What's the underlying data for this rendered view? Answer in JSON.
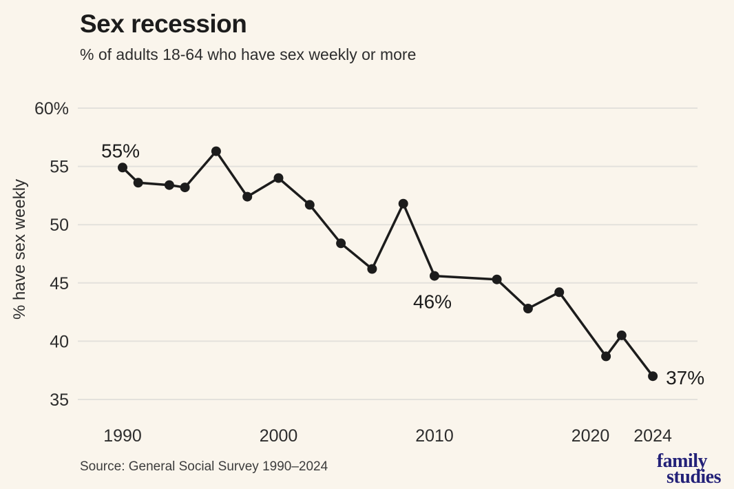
{
  "header": {
    "title": "Sex recession",
    "subtitle": "% of adults 18-64 who have sex weekly or more"
  },
  "footer": {
    "source": "Source: General Social Survey 1990–2024",
    "logo_line1": "family",
    "logo_line2": "studies"
  },
  "colors": {
    "background": "#FAF5EC",
    "ink": "#1C1C1C",
    "ink_secondary": "#2D2D2D",
    "muted": "#3C3C3C",
    "grid": "#E3E1DC",
    "line": "#1C1C1C",
    "logo": "#232178"
  },
  "chart_data": {
    "type": "line",
    "title": "Sex recession",
    "subtitle": "% of adults 18-64 who have sex weekly or more",
    "ylabel": "% have sex weekly",
    "xlabel": "",
    "x": [
      1990,
      1991,
      1993,
      1994,
      1996,
      1998,
      2000,
      2002,
      2004,
      2006,
      2008,
      2010,
      2014,
      2016,
      2018,
      2021,
      2022,
      2024
    ],
    "values": [
      54.9,
      53.6,
      53.4,
      53.2,
      56.3,
      52.4,
      54.0,
      51.7,
      48.4,
      46.2,
      51.8,
      45.6,
      45.3,
      42.8,
      44.2,
      38.7,
      40.5,
      37.0
    ],
    "ylim": [
      35,
      60
    ],
    "xlim": [
      1987,
      2027
    ],
    "grid": "horizontal",
    "legend": "none",
    "marker": "circle",
    "yticks": [
      {
        "value": 60,
        "label": "60%"
      },
      {
        "value": 55,
        "label": "55"
      },
      {
        "value": 50,
        "label": "50"
      },
      {
        "value": 45,
        "label": "45"
      },
      {
        "value": 40,
        "label": "40"
      },
      {
        "value": 35,
        "label": "35"
      }
    ],
    "xticks": [
      {
        "value": 1990,
        "label": "1990"
      },
      {
        "value": 2000,
        "label": "2000"
      },
      {
        "value": 2010,
        "label": "2010"
      },
      {
        "value": 2020,
        "label": "2020"
      },
      {
        "value": 2024,
        "label": "2024"
      }
    ],
    "annotations": [
      {
        "label": "55%",
        "year": 1990,
        "value": 54.9,
        "position": "above-left"
      },
      {
        "label": "46%",
        "year": 2010,
        "value": 45.6,
        "position": "below-left"
      },
      {
        "label": "37%",
        "year": 2024,
        "value": 37.0,
        "position": "right"
      }
    ]
  }
}
